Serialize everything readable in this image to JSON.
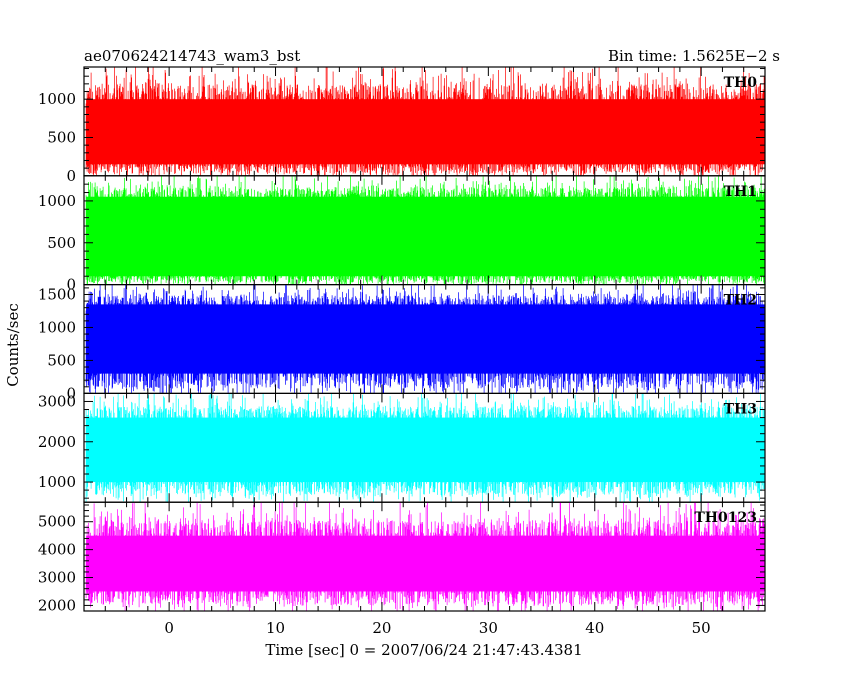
{
  "header": {
    "source_name": "ae070624214743_wam3_bst",
    "bin_time_text": "Bin time: 1.5625E−2 s"
  },
  "chart_data": {
    "type": "line",
    "xlabel": "Time [sec] 0 = 2007/06/24 21:47:43.4381",
    "ylabel": "Counts/sec",
    "xlim": [
      -8,
      56
    ],
    "x_ticks": [
      0,
      10,
      20,
      30,
      40,
      50
    ],
    "data_x_range": [
      -7.8,
      56
    ],
    "panels": [
      {
        "name": "TH0",
        "color": "#ff0000",
        "ylim": [
          0,
          1420
        ],
        "yticks": [
          0,
          500,
          1000
        ],
        "band_min": 150,
        "band_max": 1000,
        "peak_min": 0,
        "peak_max": 1420,
        "seed": 11
      },
      {
        "name": "TH1",
        "color": "#00ff00",
        "ylim": [
          0,
          1300
        ],
        "yticks": [
          0,
          500,
          1000
        ],
        "band_min": 100,
        "band_max": 1050,
        "peak_min": 0,
        "peak_max": 1300,
        "seed": 23
      },
      {
        "name": "TH2",
        "color": "#0000ff",
        "ylim": [
          0,
          1650
        ],
        "yticks": [
          0,
          500,
          1000,
          1500
        ],
        "band_min": 300,
        "band_max": 1350,
        "peak_min": 20,
        "peak_max": 1650,
        "seed": 37
      },
      {
        "name": "TH3",
        "color": "#00ffff",
        "ylim": [
          500,
          3200
        ],
        "yticks": [
          1000,
          2000,
          3000
        ],
        "band_min": 1000,
        "band_max": 2600,
        "peak_min": 600,
        "peak_max": 3200,
        "seed": 41
      },
      {
        "name": "TH0123",
        "color": "#ff00ff",
        "ylim": [
          1800,
          5700
        ],
        "yticks": [
          2000,
          3000,
          4000,
          5000
        ],
        "band_min": 2500,
        "band_max": 4500,
        "peak_min": 1900,
        "peak_max": 5700,
        "seed": 53
      }
    ]
  }
}
